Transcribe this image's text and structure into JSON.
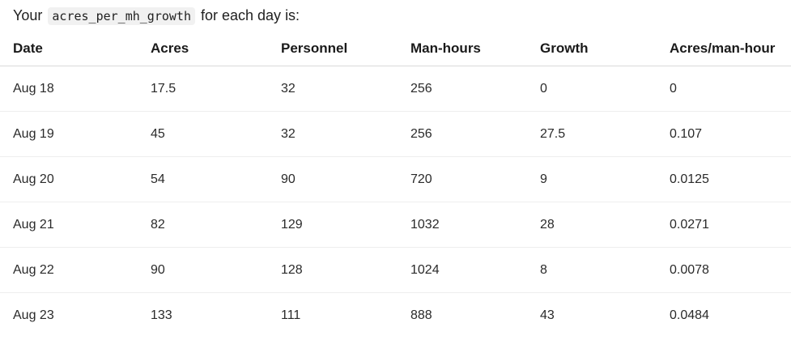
{
  "intro": {
    "prefix": "Your",
    "code": "acres_per_mh_growth",
    "suffix": "for each day is:"
  },
  "table": {
    "headers": [
      "Date",
      "Acres",
      "Personnel",
      "Man-hours",
      "Growth",
      "Acres/man-hour"
    ],
    "rows": [
      [
        "Aug 18",
        "17.5",
        "32",
        "256",
        "0",
        "0"
      ],
      [
        "Aug 19",
        "45",
        "32",
        "256",
        "27.5",
        "0.107"
      ],
      [
        "Aug 20",
        "54",
        "90",
        "720",
        "9",
        "0.0125"
      ],
      [
        "Aug 21",
        "82",
        "129",
        "1032",
        "28",
        "0.0271"
      ],
      [
        "Aug 22",
        "90",
        "128",
        "1024",
        "8",
        "0.0078"
      ],
      [
        "Aug 23",
        "133",
        "111",
        "888",
        "43",
        "0.0484"
      ]
    ]
  }
}
